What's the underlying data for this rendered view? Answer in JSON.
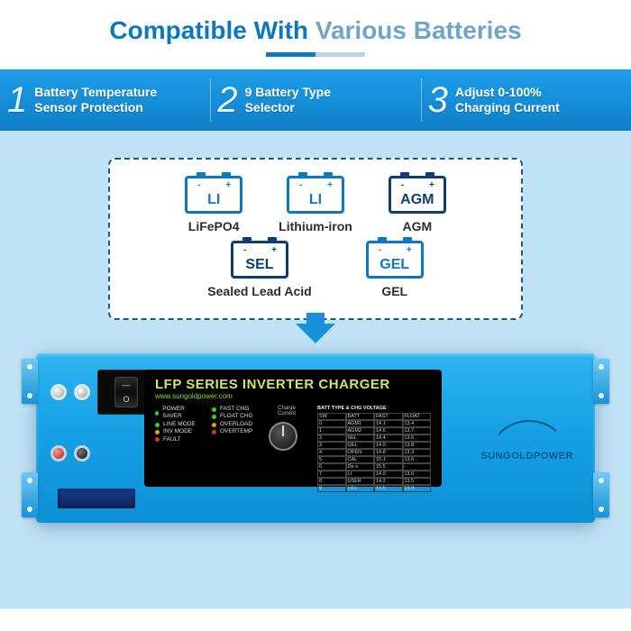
{
  "header": {
    "title_prefix": "Compatible With ",
    "title_prefix_color": "#0b78c2",
    "title_suffix": "Various Batteries",
    "title_suffix_color": "#6ea6c7"
  },
  "features": [
    {
      "num": "1",
      "line1": "Battery Temperature",
      "line2": "Sensor Protection"
    },
    {
      "num": "2",
      "line1": "9 Battery Type",
      "line2": "Selector"
    },
    {
      "num": "3",
      "line1": "Adjust 0-100%",
      "line2": "Charging Current"
    }
  ],
  "batteries": {
    "row1": [
      {
        "code": "LI",
        "label": "LiFePO4",
        "color": "#0b78c2"
      },
      {
        "code": "LI",
        "label": "Lithium-iron",
        "color": "#0b78c2"
      },
      {
        "code": "AGM",
        "label": "AGM",
        "color": "#0c3e73"
      }
    ],
    "row2": [
      {
        "code": "SEL",
        "label": "Sealed Lead Acid",
        "color": "#0c3e73"
      },
      {
        "code": "GEL",
        "label": "GEL",
        "color": "#0b78c2"
      }
    ]
  },
  "inverter": {
    "panel_title": "LFP SERIES INVERTER CHARGER",
    "panel_title_color": "#cde85a",
    "url": "www.sungoldpower.com",
    "logo_text": "SUNGOLDPOWER",
    "leds": {
      "left": [
        "POWER SAVER",
        "LINE MODE",
        "INV MODE",
        "FAULT"
      ],
      "right": [
        "FAST CHG",
        "FLOAT CHG",
        "OVERLOAD",
        "OVERTEMP"
      ]
    },
    "dial_label_top": "Charge Current",
    "table_head": "BATT TYPE & CHG VOLTAGE",
    "table": [
      [
        "SW",
        "BATT",
        "FAST",
        "FLOAT"
      ],
      [
        "0",
        "AGM1",
        "14.1",
        "13.4"
      ],
      [
        "1",
        "AGM2",
        "14.6",
        "13.7"
      ],
      [
        "2",
        "SEL",
        "14.4",
        "13.6"
      ],
      [
        "3",
        "GEL",
        "14.0",
        "13.8"
      ],
      [
        "4",
        "OPEN",
        "14.8",
        "13.3"
      ],
      [
        "5",
        "CAL",
        "15.1",
        "13.6"
      ],
      [
        "6",
        "De-s",
        "15.5",
        "-"
      ],
      [
        "7",
        "LI",
        "14.0",
        "13.6"
      ],
      [
        "8",
        "USER",
        "14.2",
        "13.5"
      ],
      [
        "9",
        "LiFe",
        "14.5",
        "13.8"
      ]
    ]
  }
}
